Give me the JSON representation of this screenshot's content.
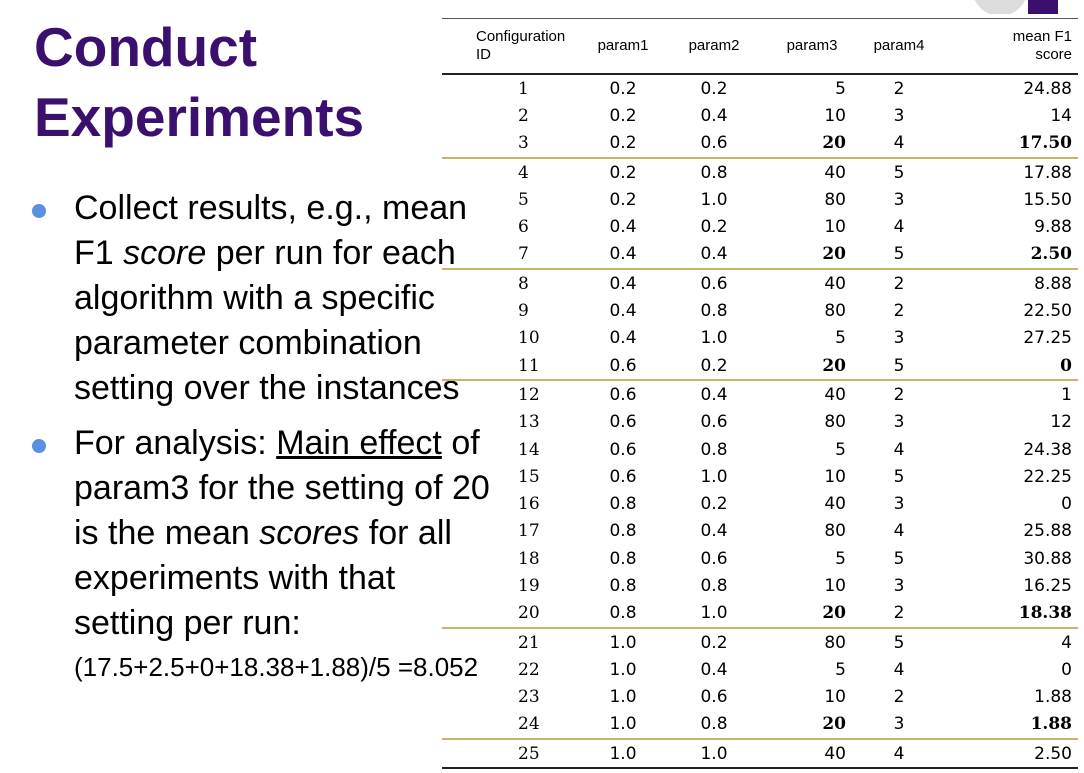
{
  "slide": {
    "title_line1": "Conduct",
    "title_line2": "Experiments",
    "bullet1": "Collect results, e.g., mean F1 score per run for each algorithm with a specific parameter combination setting over the instances",
    "bullet1_parts": {
      "before": "Collect results, e.g., mean F1 ",
      "italic": "score",
      "after": " per run for each algorithm with a specific parameter combination setting over the instances"
    },
    "bullet2_parts": {
      "before": "For analysis: ",
      "underlined": "Main effect",
      "middle": " of param3 for the setting of 20 is the mean ",
      "italic": "scores",
      "after": " for all experiments with that setting per run:"
    },
    "formula": "(17.5+2.5+0+18.38+1.88)/5 =8.052",
    "bullet_color": "#5b8fe0",
    "title_color": "#3b0f6e"
  },
  "table": {
    "headers": {
      "config_line1": "Configuration",
      "config_line2": "ID",
      "param1": "param1",
      "param2": "param2",
      "param3": "param3",
      "param4": "param4",
      "f1_line1": "mean F1",
      "f1_line2": "score"
    },
    "separator_color": "#c8b46a",
    "rows": [
      {
        "id": "1",
        "p1": "0.2",
        "p2": "0.2",
        "p3": "5",
        "p4": "2",
        "f1": "24.88",
        "bold": false,
        "sep": false
      },
      {
        "id": "2",
        "p1": "0.2",
        "p2": "0.4",
        "p3": "10",
        "p4": "3",
        "f1": "14",
        "bold": false,
        "sep": false
      },
      {
        "id": "3",
        "p1": "0.2",
        "p2": "0.6",
        "p3": "20",
        "p4": "4",
        "f1": "17.50",
        "bold": true,
        "sep": false
      },
      {
        "id": "4",
        "p1": "0.2",
        "p2": "0.8",
        "p3": "40",
        "p4": "5",
        "f1": "17.88",
        "bold": false,
        "sep": true
      },
      {
        "id": "5",
        "p1": "0.2",
        "p2": "1.0",
        "p3": "80",
        "p4": "3",
        "f1": "15.50",
        "bold": false,
        "sep": false
      },
      {
        "id": "6",
        "p1": "0.4",
        "p2": "0.2",
        "p3": "10",
        "p4": "4",
        "f1": "9.88",
        "bold": false,
        "sep": false
      },
      {
        "id": "7",
        "p1": "0.4",
        "p2": "0.4",
        "p3": "20",
        "p4": "5",
        "f1": "2.50",
        "bold": true,
        "sep": false
      },
      {
        "id": "8",
        "p1": "0.4",
        "p2": "0.6",
        "p3": "40",
        "p4": "2",
        "f1": "8.88",
        "bold": false,
        "sep": true
      },
      {
        "id": "9",
        "p1": "0.4",
        "p2": "0.8",
        "p3": "80",
        "p4": "2",
        "f1": "22.50",
        "bold": false,
        "sep": false
      },
      {
        "id": "10",
        "p1": "0.4",
        "p2": "1.0",
        "p3": "5",
        "p4": "3",
        "f1": "27.25",
        "bold": false,
        "sep": false
      },
      {
        "id": "11",
        "p1": "0.6",
        "p2": "0.2",
        "p3": "20",
        "p4": "5",
        "f1": "0",
        "bold": true,
        "sep": false
      },
      {
        "id": "12",
        "p1": "0.6",
        "p2": "0.4",
        "p3": "40",
        "p4": "2",
        "f1": "1",
        "bold": false,
        "sep": true
      },
      {
        "id": "13",
        "p1": "0.6",
        "p2": "0.6",
        "p3": "80",
        "p4": "3",
        "f1": "12",
        "bold": false,
        "sep": false
      },
      {
        "id": "14",
        "p1": "0.6",
        "p2": "0.8",
        "p3": "5",
        "p4": "4",
        "f1": "24.38",
        "bold": false,
        "sep": false
      },
      {
        "id": "15",
        "p1": "0.6",
        "p2": "1.0",
        "p3": "10",
        "p4": "5",
        "f1": "22.25",
        "bold": false,
        "sep": false
      },
      {
        "id": "16",
        "p1": "0.8",
        "p2": "0.2",
        "p3": "40",
        "p4": "3",
        "f1": "0",
        "bold": false,
        "sep": false
      },
      {
        "id": "17",
        "p1": "0.8",
        "p2": "0.4",
        "p3": "80",
        "p4": "4",
        "f1": "25.88",
        "bold": false,
        "sep": false
      },
      {
        "id": "18",
        "p1": "0.8",
        "p2": "0.6",
        "p3": "5",
        "p4": "5",
        "f1": "30.88",
        "bold": false,
        "sep": false
      },
      {
        "id": "19",
        "p1": "0.8",
        "p2": "0.8",
        "p3": "10",
        "p4": "3",
        "f1": "16.25",
        "bold": false,
        "sep": false
      },
      {
        "id": "20",
        "p1": "0.8",
        "p2": "1.0",
        "p3": "20",
        "p4": "2",
        "f1": "18.38",
        "bold": true,
        "sep": false
      },
      {
        "id": "21",
        "p1": "1.0",
        "p2": "0.2",
        "p3": "80",
        "p4": "5",
        "f1": "4",
        "bold": false,
        "sep": true
      },
      {
        "id": "22",
        "p1": "1.0",
        "p2": "0.4",
        "p3": "5",
        "p4": "4",
        "f1": "0",
        "bold": false,
        "sep": false
      },
      {
        "id": "23",
        "p1": "1.0",
        "p2": "0.6",
        "p3": "10",
        "p4": "2",
        "f1": "1.88",
        "bold": false,
        "sep": false
      },
      {
        "id": "24",
        "p1": "1.0",
        "p2": "0.8",
        "p3": "20",
        "p4": "3",
        "f1": "1.88",
        "bold": true,
        "sep": false
      },
      {
        "id": "25",
        "p1": "1.0",
        "p2": "1.0",
        "p3": "40",
        "p4": "4",
        "f1": "2.50",
        "bold": false,
        "sep": true
      }
    ]
  }
}
